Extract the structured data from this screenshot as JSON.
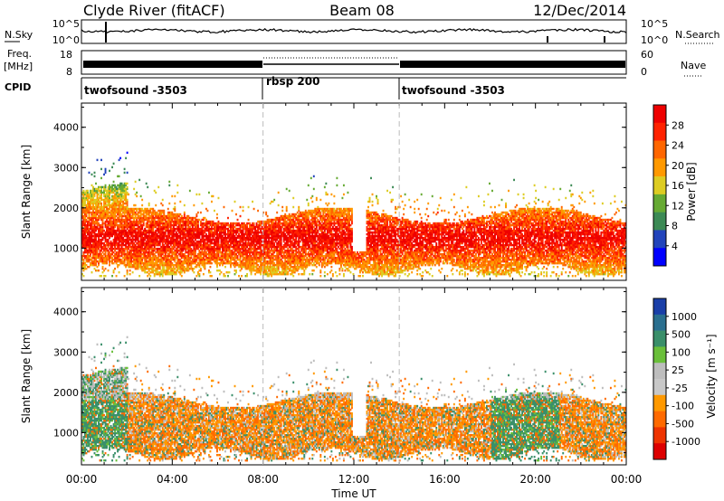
{
  "header": {
    "station": "Clyde River (fitACF)",
    "beam": "Beam 08",
    "date": "12/Dec/2014"
  },
  "nsky_panel": {
    "left_label": "N.Sky",
    "right_label": "N.Search",
    "left_ticks": [
      "10^5",
      "10^0"
    ],
    "right_ticks": [
      "10^5",
      "10^0"
    ]
  },
  "freq_panel": {
    "left_label_1": "Freq.",
    "left_label_2": "[MHz]",
    "right_label": "Nave",
    "left_ticks": [
      "18",
      "8"
    ],
    "right_ticks": [
      "60",
      "0"
    ]
  },
  "cpid": {
    "label": "CPID",
    "segments": [
      {
        "name": "twofsound -3503",
        "start_hour": 0,
        "end_hour": 8
      },
      {
        "name": "rbsp 200",
        "start_hour": 8,
        "end_hour": 14
      },
      {
        "name": "twofsound -3503",
        "start_hour": 14,
        "end_hour": 24
      }
    ]
  },
  "colors": {
    "power_scale": [
      "#0000ff",
      "#2244bb",
      "#3c8a55",
      "#66aa33",
      "#ddcc22",
      "#ff9900",
      "#ff6600",
      "#ff2200",
      "#ee0000"
    ],
    "velocity_scale": [
      "#1a3fa8",
      "#2a6f8f",
      "#3a8f6a",
      "#6abf3a",
      "#bdbdbd",
      "#c8c8c8",
      "#ff9900",
      "#ff6a00",
      "#ee3300",
      "#dd0000"
    ]
  },
  "chart_data": [
    {
      "type": "heatmap",
      "title": "Power",
      "ylabel": "Slant Range [km]",
      "xlabel": "",
      "colorbar_label": "Power [dB]",
      "colorbar_ticks": [
        "28",
        "24",
        "20",
        "16",
        "12",
        "8",
        "4"
      ],
      "colorbar_range": [
        0,
        32
      ],
      "ylim": [
        200,
        4600
      ],
      "xlim": [
        0,
        24
      ],
      "yticks": [
        "4000",
        "3000",
        "2000",
        "1000"
      ],
      "ytick_values": [
        4000,
        3000,
        2000,
        1000
      ],
      "xticks": [
        0,
        4,
        8,
        12,
        16,
        20,
        24
      ],
      "gap_hours": [
        11.9,
        12.5
      ],
      "core_band_km": [
        700,
        1800
      ],
      "values_description_stats": {
        "typical_core_dB": 26,
        "typical_edge_dB": 12,
        "max_dB": 30
      }
    },
    {
      "type": "heatmap",
      "title": "Velocity",
      "ylabel": "Slant Range [km]",
      "xlabel": "Time UT",
      "colorbar_label": "Velocity [m s⁻¹]",
      "colorbar_ticks": [
        "1000",
        "500",
        "100",
        "25",
        "-25",
        "-100",
        "-500",
        "-1000"
      ],
      "colorbar_range": [
        -1000,
        1000
      ],
      "ylim": [
        200,
        4600
      ],
      "xlim": [
        0,
        24
      ],
      "yticks": [
        "4000",
        "3000",
        "2000",
        "1000"
      ],
      "ytick_values": [
        4000,
        3000,
        2000,
        1000
      ],
      "xtick_labels": [
        "00:00",
        "04:00",
        "08:00",
        "12:00",
        "16:00",
        "20:00",
        "00:00"
      ],
      "xticks": [
        0,
        4,
        8,
        12,
        16,
        20,
        24
      ]
    }
  ]
}
